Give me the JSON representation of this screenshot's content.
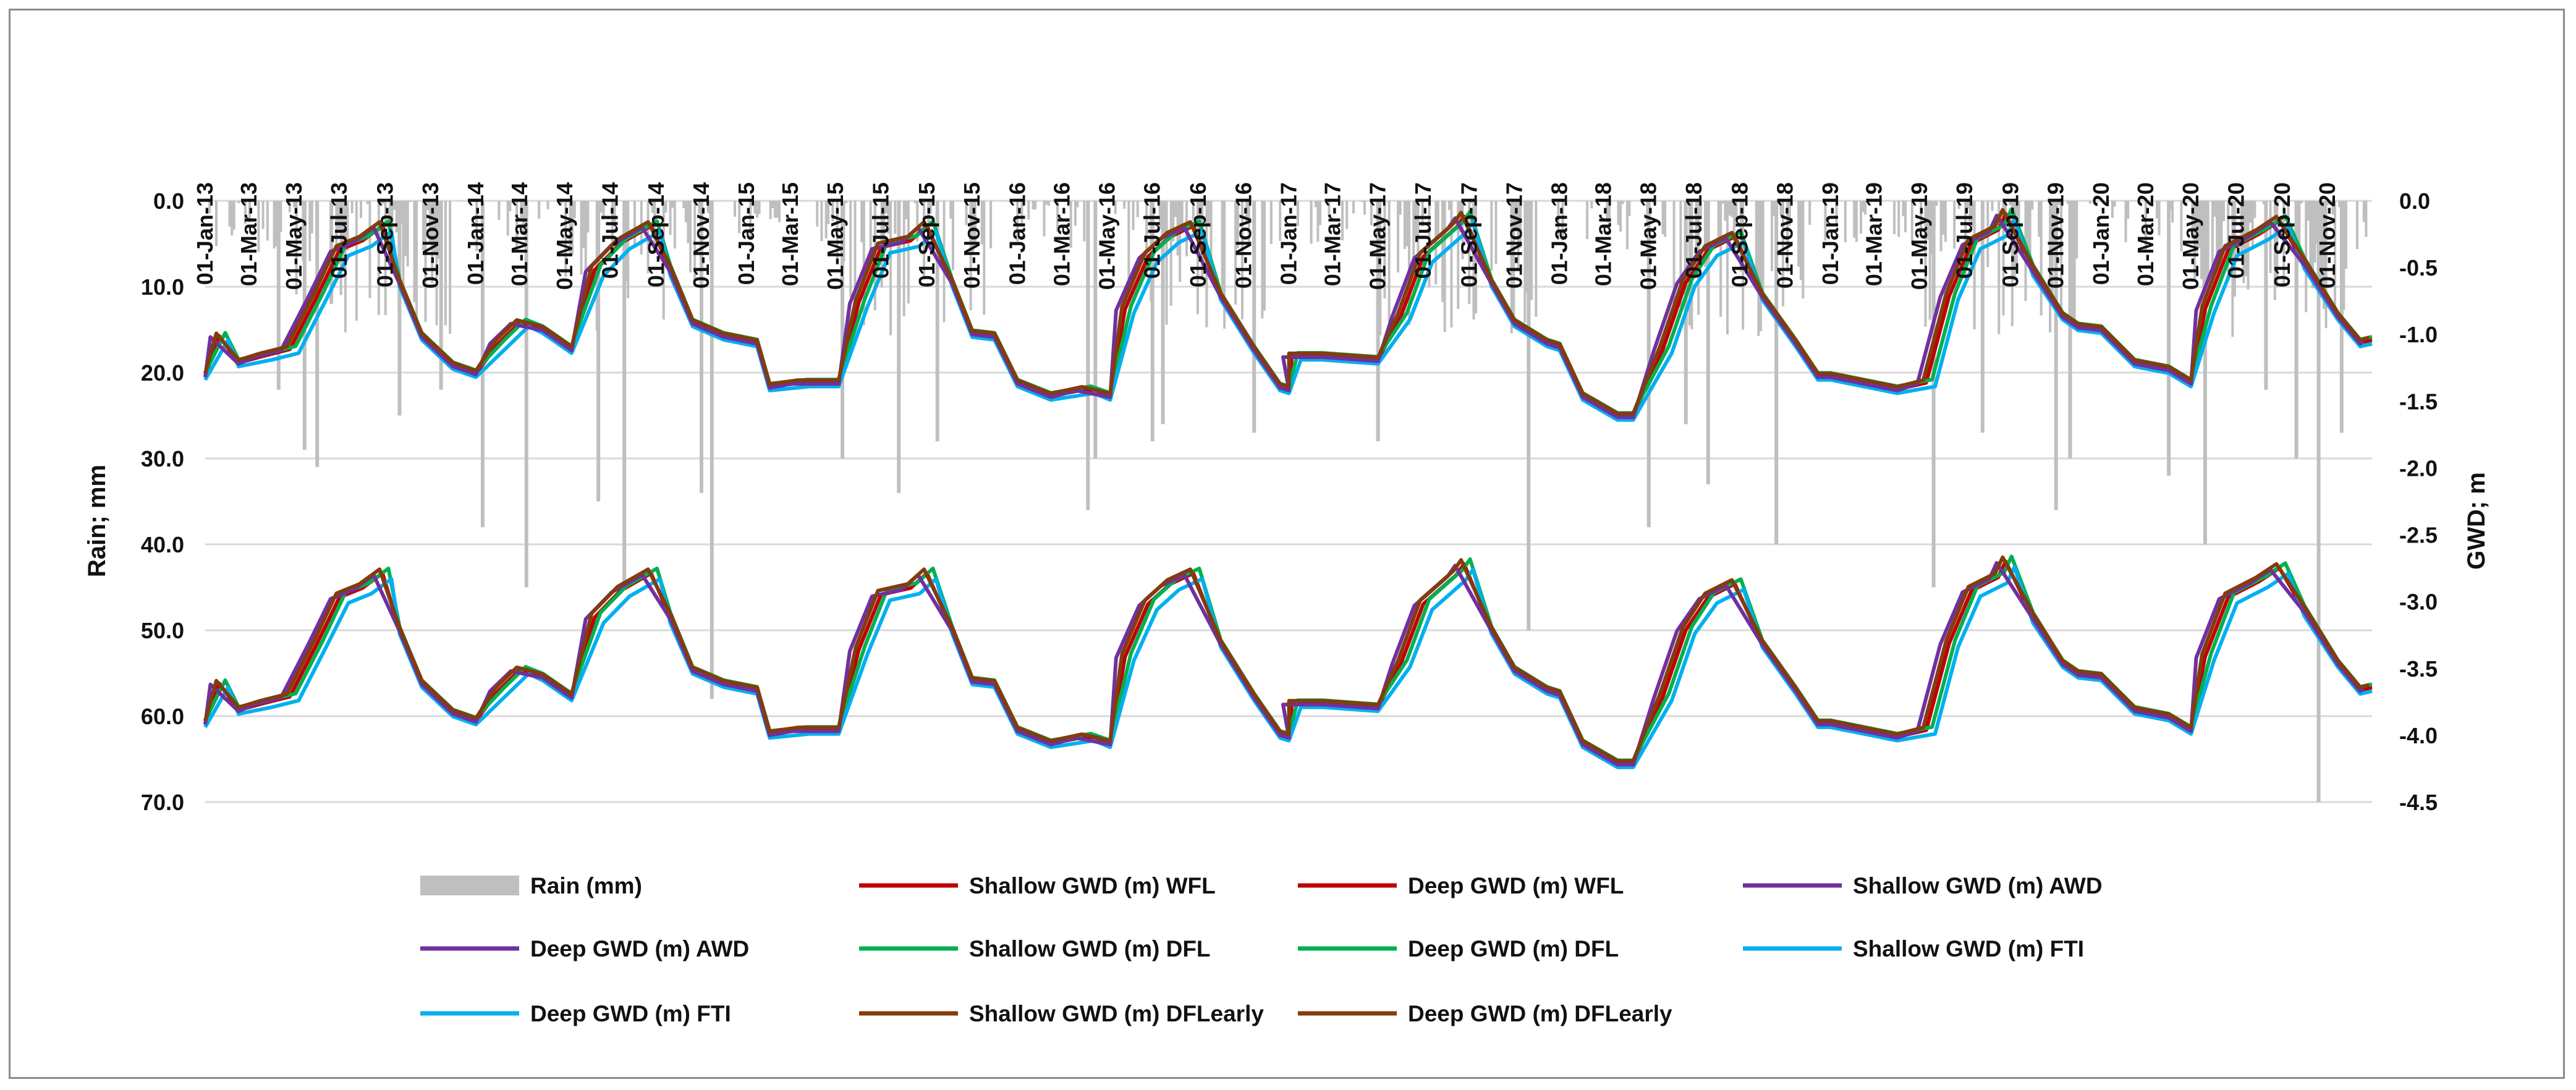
{
  "chart_data": {
    "type": "bar+line",
    "title": "",
    "xlabel": "",
    "ylabel_left": "Rain; mm",
    "ylabel_right": "GWD; m",
    "ylim_left": [
      70,
      0
    ],
    "ylim_right": [
      -4.5,
      0
    ],
    "grid": "horizontal",
    "legend_position": "bottom",
    "x_start": "2013-01-01",
    "x_end": "2020-12-31",
    "x_tick_labels": [
      "01-Jan-13",
      "01-Mar-13",
      "01-May-13",
      "01-Jul-13",
      "01-Sep-13",
      "01-Nov-13",
      "01-Jan-14",
      "01-Mar-14",
      "01-May-14",
      "01-Jul-14",
      "01-Sep-14",
      "01-Nov-14",
      "01-Jan-15",
      "01-Mar-15",
      "01-May-15",
      "01-Jul-15",
      "01-Sep-15",
      "01-Nov-15",
      "01-Jan-16",
      "01-Mar-16",
      "01-May-16",
      "01-Jul-16",
      "01-Sep-16",
      "01-Nov-16",
      "01-Jan-17",
      "01-Mar-17",
      "01-May-17",
      "01-Jul-17",
      "01-Sep-17",
      "01-Nov-17",
      "01-Jan-18",
      "01-Mar-18",
      "01-May-18",
      "01-Jul-18",
      "01-Sep-18",
      "01-Nov-18",
      "01-Jan-19",
      "01-Mar-19",
      "01-May-19",
      "01-Jul-19",
      "01-Sep-19",
      "01-Nov-19",
      "01-Jan-20",
      "01-Mar-20",
      "01-May-20",
      "01-Jul-20",
      "01-Sep-20",
      "01-Nov-20"
    ],
    "y_left_tick_labels": [
      "0.0",
      "10.0",
      "20.0",
      "30.0",
      "40.0",
      "50.0",
      "60.0",
      "70.0"
    ],
    "y_left_tick_values": [
      0,
      10,
      20,
      30,
      40,
      50,
      60,
      70
    ],
    "y_right_tick_labels": [
      "0.0",
      "-0.5",
      "-1.0",
      "-1.5",
      "-2.0",
      "-2.5",
      "-3.0",
      "-3.5",
      "-4.0",
      "-4.5"
    ],
    "y_right_tick_values": [
      0,
      -0.5,
      -1.0,
      -1.5,
      -2.0,
      -2.5,
      -3.0,
      -3.5,
      -4.0,
      -4.5
    ],
    "rain_series": {
      "name": "Rain (mm)",
      "axis": "left",
      "color": "#bfbfbf",
      "events": [
        {
          "d": "2013-06-01",
          "v": 31
        },
        {
          "d": "2013-05-15",
          "v": 29
        },
        {
          "d": "2013-04-10",
          "v": 22
        },
        {
          "d": "2013-06-20",
          "v": 12
        },
        {
          "d": "2013-07-05",
          "v": 8
        },
        {
          "d": "2013-09-20",
          "v": 25
        },
        {
          "d": "2013-11-15",
          "v": 22
        },
        {
          "d": "2014-01-10",
          "v": 38
        },
        {
          "d": "2014-03-10",
          "v": 45
        },
        {
          "d": "2014-06-15",
          "v": 35
        },
        {
          "d": "2014-07-20",
          "v": 45
        },
        {
          "d": "2014-11-01",
          "v": 34
        },
        {
          "d": "2014-11-15",
          "v": 58
        },
        {
          "d": "2015-05-10",
          "v": 30
        },
        {
          "d": "2015-07-25",
          "v": 34
        },
        {
          "d": "2015-09-15",
          "v": 28
        },
        {
          "d": "2016-04-05",
          "v": 36
        },
        {
          "d": "2016-04-15",
          "v": 30
        },
        {
          "d": "2016-07-01",
          "v": 28
        },
        {
          "d": "2016-07-15",
          "v": 26
        },
        {
          "d": "2016-11-15",
          "v": 27
        },
        {
          "d": "2017-05-01",
          "v": 28
        },
        {
          "d": "2017-11-20",
          "v": 50
        },
        {
          "d": "2018-05-01",
          "v": 38
        },
        {
          "d": "2018-06-20",
          "v": 26
        },
        {
          "d": "2018-07-20",
          "v": 33
        },
        {
          "d": "2018-10-20",
          "v": 40
        },
        {
          "d": "2019-05-20",
          "v": 45
        },
        {
          "d": "2019-07-25",
          "v": 27
        },
        {
          "d": "2019-11-01",
          "v": 36
        },
        {
          "d": "2019-11-20",
          "v": 30
        },
        {
          "d": "2020-04-01",
          "v": 32
        },
        {
          "d": "2020-05-20",
          "v": 40
        },
        {
          "d": "2020-08-10",
          "v": 22
        },
        {
          "d": "2020-09-20",
          "v": 30
        },
        {
          "d": "2020-10-20",
          "v": 70
        },
        {
          "d": "2020-11-20",
          "v": 27
        }
      ]
    },
    "series": [
      {
        "name": "Shallow GWD (m) WFL",
        "color": "#c00000",
        "axis": "right",
        "layer": "shallow",
        "offset": 0.03,
        "early": 0
      },
      {
        "name": "Deep GWD (m) WFL",
        "color": "#c00000",
        "axis": "right",
        "layer": "deep",
        "offset": 0.03,
        "early": 0
      },
      {
        "name": "Shallow GWD (m) AWD",
        "color": "#7030a0",
        "axis": "right",
        "layer": "shallow",
        "offset": 0.05,
        "early": 12
      },
      {
        "name": "Deep GWD (m) AWD",
        "color": "#7030a0",
        "axis": "right",
        "layer": "deep",
        "offset": 0.05,
        "early": 12
      },
      {
        "name": "Shallow GWD (m) DFL",
        "color": "#00b050",
        "axis": "right",
        "layer": "shallow",
        "offset": -0.03,
        "early": -8
      },
      {
        "name": "Deep GWD (m) DFL",
        "color": "#00b050",
        "axis": "right",
        "layer": "deep",
        "offset": -0.03,
        "early": -8
      },
      {
        "name": "Shallow GWD (m) FTI",
        "color": "#00b0f0",
        "axis": "right",
        "layer": "shallow",
        "offset": 0.1,
        "early": -12
      },
      {
        "name": "Deep GWD (m) FTI",
        "color": "#00b0f0",
        "axis": "right",
        "layer": "deep",
        "offset": 0.1,
        "early": -12
      },
      {
        "name": "Shallow GWD (m) DFLearly",
        "color": "#843c0c",
        "axis": "right",
        "layer": "shallow",
        "offset": -0.02,
        "early": 4
      },
      {
        "name": "Deep GWD (m) DFLearly",
        "color": "#843c0c",
        "axis": "right",
        "layer": "deep",
        "offset": -0.02,
        "early": 4
      }
    ],
    "shallow_baseline": [
      [
        "2013-01-01",
        -1.3
      ],
      [
        "2013-01-20",
        -1.0
      ],
      [
        "2013-02-15",
        -1.2
      ],
      [
        "2013-03-20",
        -1.15
      ],
      [
        "2013-04-25",
        -1.1
      ],
      [
        "2013-06-01",
        -0.7
      ],
      [
        "2013-07-01",
        -0.35
      ],
      [
        "2013-08-01",
        -0.28
      ],
      [
        "2013-08-28",
        -0.17
      ],
      [
        "2013-09-20",
        -0.6
      ],
      [
        "2013-10-20",
        -1.0
      ],
      [
        "2013-12-01",
        -1.22
      ],
      [
        "2014-01-01",
        -1.28
      ],
      [
        "2014-02-01",
        -1.05
      ],
      [
        "2014-03-01",
        -0.9
      ],
      [
        "2014-04-01",
        -0.95
      ],
      [
        "2014-05-10",
        -1.1
      ],
      [
        "2014-06-10",
        -0.5
      ],
      [
        "2014-07-15",
        -0.3
      ],
      [
        "2014-08-25",
        -0.17
      ],
      [
        "2014-09-20",
        -0.5
      ],
      [
        "2014-10-20",
        -0.9
      ],
      [
        "2014-12-01",
        -1.0
      ],
      [
        "2015-01-15",
        -1.05
      ],
      [
        "2015-02-01",
        -1.38
      ],
      [
        "2015-03-15",
        -1.35
      ],
      [
        "2015-05-05",
        -1.35
      ],
      [
        "2015-06-01",
        -0.75
      ],
      [
        "2015-07-01",
        -0.33
      ],
      [
        "2015-08-10",
        -0.28
      ],
      [
        "2015-09-01",
        -0.17
      ],
      [
        "2015-10-05",
        -0.6
      ],
      [
        "2015-11-01",
        -0.98
      ],
      [
        "2015-12-01",
        -1.0
      ],
      [
        "2016-01-01",
        -1.35
      ],
      [
        "2016-02-15",
        -1.45
      ],
      [
        "2016-04-01",
        -1.4
      ],
      [
        "2016-05-05",
        -1.45
      ],
      [
        "2016-05-25",
        -0.8
      ],
      [
        "2016-06-25",
        -0.4
      ],
      [
        "2016-07-25",
        -0.25
      ],
      [
        "2016-08-25",
        -0.17
      ],
      [
        "2016-10-01",
        -0.7
      ],
      [
        "2016-11-15",
        -1.1
      ],
      [
        "2016-12-20",
        -1.38
      ],
      [
        "2017-01-01",
        -1.4
      ],
      [
        "2017-01-05",
        -1.15
      ],
      [
        "2017-02-15",
        -1.15
      ],
      [
        "2017-05-01",
        -1.18
      ],
      [
        "2017-06-01",
        -0.85
      ],
      [
        "2017-07-01",
        -0.4
      ],
      [
        "2017-08-15",
        -0.18
      ],
      [
        "2017-08-25",
        -0.1
      ],
      [
        "2017-10-01",
        -0.6
      ],
      [
        "2017-11-01",
        -0.9
      ],
      [
        "2017-12-15",
        -1.05
      ],
      [
        "2018-01-01",
        -1.08
      ],
      [
        "2018-02-01",
        -1.45
      ],
      [
        "2018-03-20",
        -1.6
      ],
      [
        "2018-04-10",
        -1.6
      ],
      [
        "2018-05-20",
        -1.1
      ],
      [
        "2018-06-20",
        -0.6
      ],
      [
        "2018-07-20",
        -0.35
      ],
      [
        "2018-08-25",
        -0.25
      ],
      [
        "2018-10-01",
        -0.7
      ],
      [
        "2018-11-15",
        -1.05
      ],
      [
        "2018-12-15",
        -1.3
      ],
      [
        "2019-01-01",
        -1.3
      ],
      [
        "2019-02-15",
        -1.35
      ],
      [
        "2019-04-01",
        -1.4
      ],
      [
        "2019-05-10",
        -1.35
      ],
      [
        "2019-06-10",
        -0.7
      ],
      [
        "2019-07-10",
        -0.3
      ],
      [
        "2019-08-15",
        -0.2
      ],
      [
        "2019-08-25",
        -0.08
      ],
      [
        "2019-10-01",
        -0.5
      ],
      [
        "2019-11-10",
        -0.85
      ],
      [
        "2019-12-01",
        -0.93
      ],
      [
        "2020-01-01",
        -0.95
      ],
      [
        "2020-02-15",
        -1.2
      ],
      [
        "2020-04-01",
        -1.25
      ],
      [
        "2020-05-01",
        -1.35
      ],
      [
        "2020-05-20",
        -0.8
      ],
      [
        "2020-06-20",
        -0.35
      ],
      [
        "2020-08-01",
        -0.23
      ],
      [
        "2020-08-28",
        -0.13
      ],
      [
        "2020-10-01",
        -0.45
      ],
      [
        "2020-11-15",
        -0.85
      ],
      [
        "2020-12-15",
        -1.05
      ],
      [
        "2020-12-31",
        -1.03
      ]
    ],
    "deep_shift": -2.6
  },
  "legend": [
    {
      "label": "Rain (mm)",
      "color": "#bfbfbf",
      "kind": "bar"
    },
    {
      "label": "Shallow GWD (m) WFL",
      "color": "#c00000",
      "kind": "line"
    },
    {
      "label": "Deep GWD (m) WFL",
      "color": "#c00000",
      "kind": "line"
    },
    {
      "label": "Shallow GWD (m) AWD",
      "color": "#7030a0",
      "kind": "line"
    },
    {
      "label": "Deep GWD (m) AWD",
      "color": "#7030a0",
      "kind": "line"
    },
    {
      "label": "Shallow GWD (m) DFL",
      "color": "#00b050",
      "kind": "line"
    },
    {
      "label": "Deep GWD (m) DFL",
      "color": "#00b050",
      "kind": "line"
    },
    {
      "label": "Shallow GWD (m) FTI",
      "color": "#00b0f0",
      "kind": "line"
    },
    {
      "label": "Deep GWD (m) FTI",
      "color": "#00b0f0",
      "kind": "line"
    },
    {
      "label": "Shallow GWD (m) DFLearly",
      "color": "#843c0c",
      "kind": "line"
    },
    {
      "label": "Deep GWD (m) DFLearly",
      "color": "#843c0c",
      "kind": "line"
    }
  ]
}
